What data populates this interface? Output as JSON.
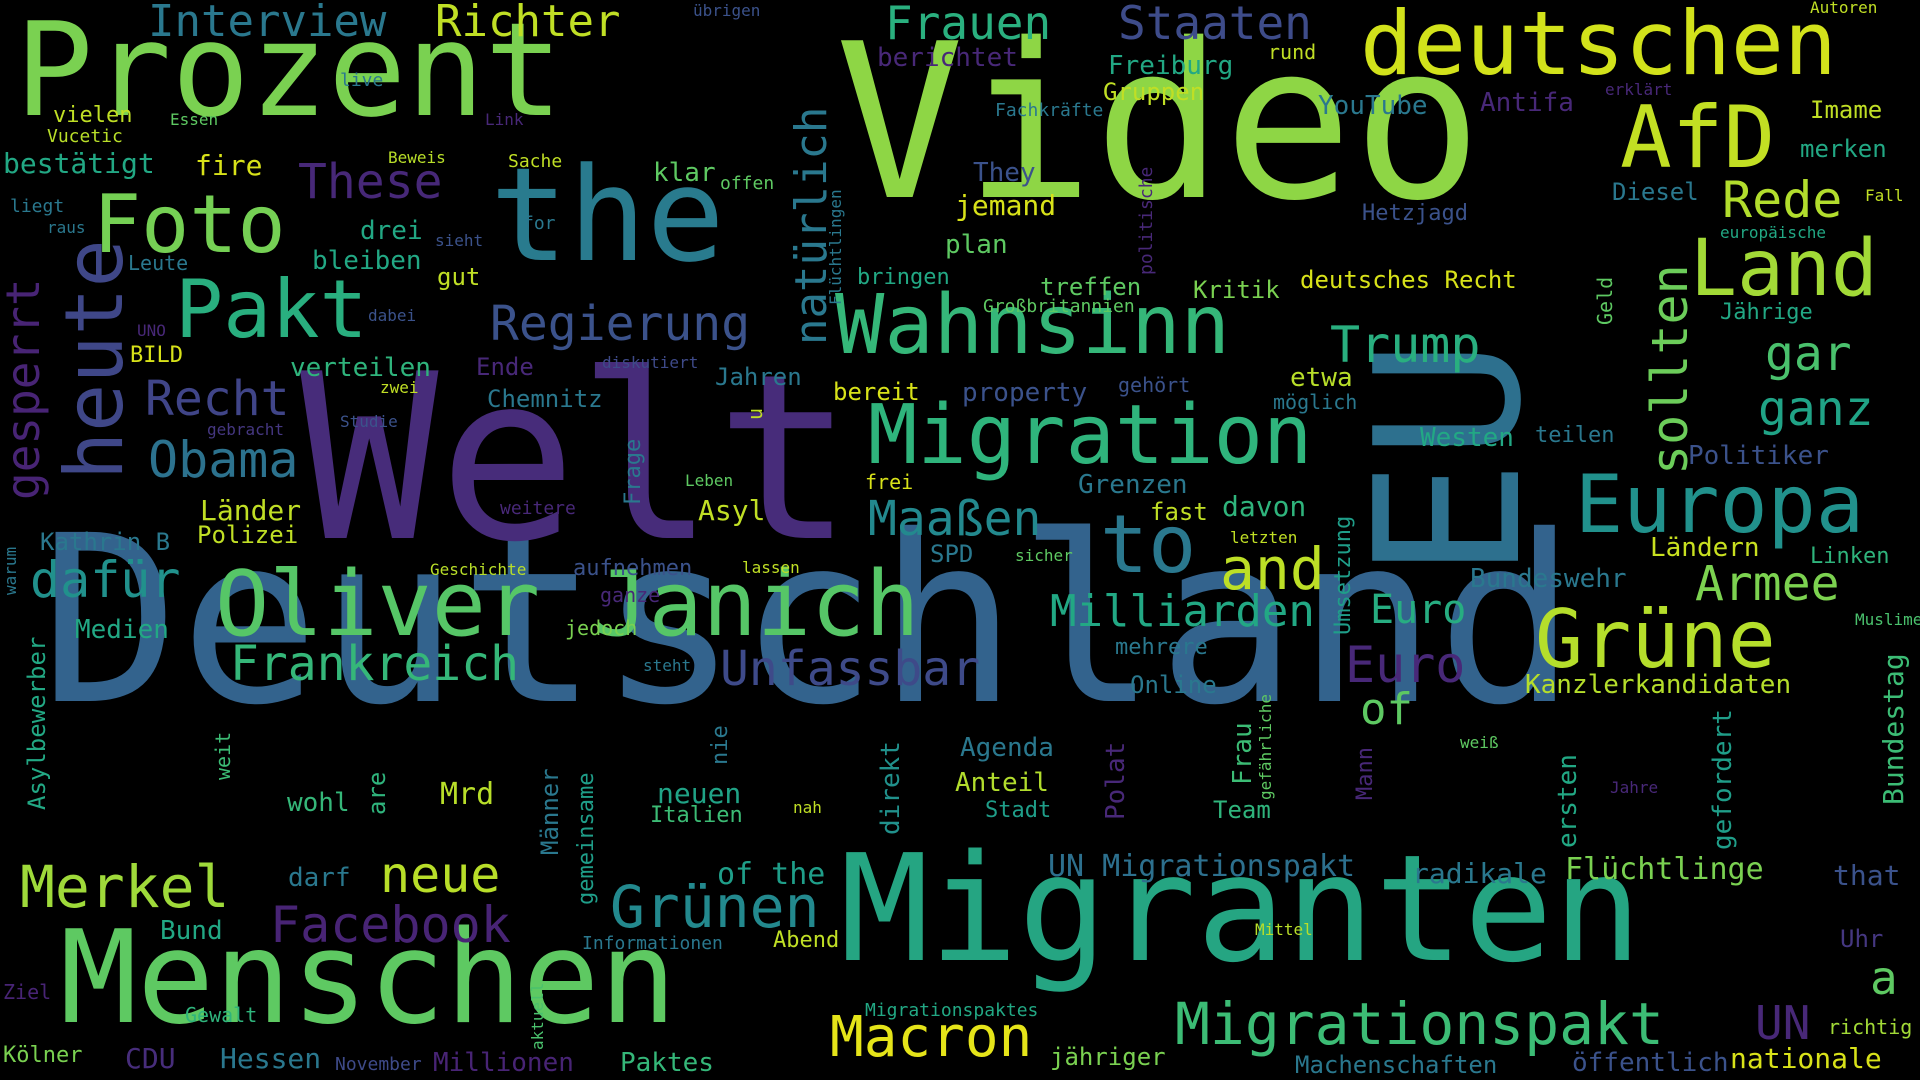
{
  "palette": {
    "yellow": "#d6e21f",
    "lime": "#9fd938",
    "green": "#5ec962",
    "teal": "#21918c",
    "cyan": "#1f9a8a",
    "blue": "#31688e",
    "indigo": "#3b528b",
    "purple": "#472d7b",
    "dark": "#440154"
  },
  "words": {
    "deutschland": "Deutschland",
    "welt": "Welt",
    "video": "Video",
    "eu": "EU",
    "migranten": "Migranten",
    "prozent": "Prozent",
    "menschen": "Menschen",
    "the": "the",
    "oliver_janich": "Oliver Janich",
    "migration": "Migration",
    "deutschen": "deutschen",
    "wahnsinn": "Wahnsinn",
    "afd": "AfD",
    "land": "Land",
    "europa": "Europa",
    "pakt": "Pakt",
    "foto": "Foto",
    "heute": "heute",
    "gruene": "Grüne",
    "migrationspakt": "Migrationspakt",
    "merkel": "Merkel",
    "macron": "Macron",
    "to": "to",
    "and": "and",
    "regierung": "Regierung",
    "obama": "Obama",
    "recht": "Recht",
    "frankreich": "Frankreich",
    "unfassbar": "Unfassbar",
    "gruenen": "Grünen",
    "facebook": "Facebook",
    "neue": "neue",
    "milliarden": "Milliarden",
    "euro": "Euro",
    "euro2": "Euro",
    "trump": "Trump",
    "sollten": "sollten",
    "rede": "Rede",
    "armee": "Armee",
    "gar": "gar",
    "ganz": "ganz",
    "un_migrationspakt": "UN Migrationspakt",
    "frauen": "Frauen",
    "staaten": "Staaten",
    "interview": "Interview",
    "richter": "Richter",
    "these": "These",
    "natuerlich": "natürlich",
    "dafuer": "dafür",
    "maassen": "Maaßen",
    "gesperrt": "gesperrt",
    "of": "of",
    "un": "UN",
    "a": "a",
    "of_the": "of the",
    "fluechtlinge": "Flüchtlinge",
    "kanzlerkandidaten": "Kanzlerkandidaten",
    "bundeswehr": "Bundeswehr",
    "laendern": "Ländern",
    "linken": "Linken",
    "muslime": "Muslime",
    "bundestag": "Bundestag",
    "gefordert": "gefordert",
    "ersten": "ersten",
    "radikale": "radikale",
    "that": "that",
    "uhr": "Uhr",
    "richtig": "richtig",
    "nationale": "nationale",
    "oeffentlich": "öffentlich",
    "machenschaften": "Machenschaften",
    "jaehriger": "jähriger",
    "migrationspaktes": "Migrationspaktes",
    "paktes": "Paktes",
    "millionen": "Millionen",
    "november": "November",
    "hessen": "Hessen",
    "cdu": "CDU",
    "koelner": "Kölner",
    "gewalt": "Gewalt",
    "ziel": "Ziel",
    "bund": "Bund",
    "informationen": "Informationen",
    "abend": "Abend",
    "mittel": "Mittel",
    "darf": "darf",
    "wohl": "wohl",
    "are": "are",
    "mrd": "Mrd",
    "maenner": "Männer",
    "gemeinsame": "gemeinsame",
    "aktuell": "aktuell",
    "neuen": "neuen",
    "italien": "Italien",
    "nah": "nah",
    "nie": "nie",
    "direkt": "direkt",
    "agenda": "Agenda",
    "anteil": "Anteil",
    "stadt": "Stadt",
    "polat": "Polat",
    "team": "Team",
    "frau": "Frau",
    "gefaehrliche": "gefährliche",
    "mann": "Mann",
    "weiss": "weiß",
    "jahre": "Jahre",
    "online": "Online",
    "mehrere": "mehrere",
    "umsetzung": "Umsetzung",
    "sicher": "sicher",
    "letzten": "letzten",
    "fast": "fast",
    "davon": "davon",
    "grenzen": "Grenzen",
    "frei": "frei",
    "spd": "SPD",
    "asyl": "Asyl",
    "leben": "Leben",
    "frage": "Frage",
    "lassen": "lassen",
    "geschichte": "Geschichte",
    "aufnehmen": "aufnehmen",
    "ganze": "ganze",
    "jedoch": "jedoch",
    "steht": "steht",
    "weit": "weit",
    "medien": "Medien",
    "asylbewerber": "Asylbewerber",
    "warum": "warum",
    "kathrin_b": "Kathrin B",
    "polizei": "Polizei",
    "laender": "Länder",
    "weitere": "weitere",
    "gebracht": "gebracht",
    "studie": "Studie",
    "zwei": "zwei",
    "ende": "Ende",
    "verteilen": "verteilen",
    "diskutiert": "diskutiert",
    "chemnitz": "Chemnitz",
    "jahren": "Jahren",
    "u": "u",
    "bereit": "bereit",
    "property": "property",
    "gehoert": "gehört",
    "etwa": "etwa",
    "moeglich": "möglich",
    "westen": "Westen",
    "teilen": "teilen",
    "politiker": "Politiker",
    "uno": "UNO",
    "bild": "BILD",
    "dabei": "dabei",
    "gut": "gut",
    "bleiben": "bleiben",
    "drei": "drei",
    "leute": "Leute",
    "sieht": "sieht",
    "raus": "raus",
    "liegt": "liegt",
    "for": "for",
    "offen": "offen",
    "klar": "klar",
    "fire": "fire",
    "sache": "Sache",
    "beweis": "Beweis",
    "bestaetigt": "bestätigt",
    "vucetic": "Vucetic",
    "vielen": "vielen",
    "essen": "Essen",
    "link": "Link",
    "live": "live",
    "uebrigen": "übrigen",
    "berichtet": "berichtet",
    "freiburg": "Freiburg",
    "gruppen": "Gruppen",
    "rund": "rund",
    "fachkraefte": "Fachkräfte",
    "youtube": "YouTube",
    "antifa": "Antifa",
    "erklaert": "erklärt",
    "autoren": "Autoren",
    "imame": "Imame",
    "merken": "merken",
    "diesel": "Diesel",
    "fall": "Fall",
    "hetzjagd": "Hetzjagd",
    "europaeische": "europäische",
    "geld": "Geld",
    "jaehrige": "Jährige",
    "deutsches_recht": "deutsches Recht",
    "kritik": "Kritik",
    "treffen": "treffen",
    "grossbritannien": "Großbritannien",
    "politische": "politische",
    "bringen": "bringen",
    "fluechtlingen": "Flüchtlingen",
    "plan": "plan",
    "jemand": "jemand",
    "they": "They"
  }
}
